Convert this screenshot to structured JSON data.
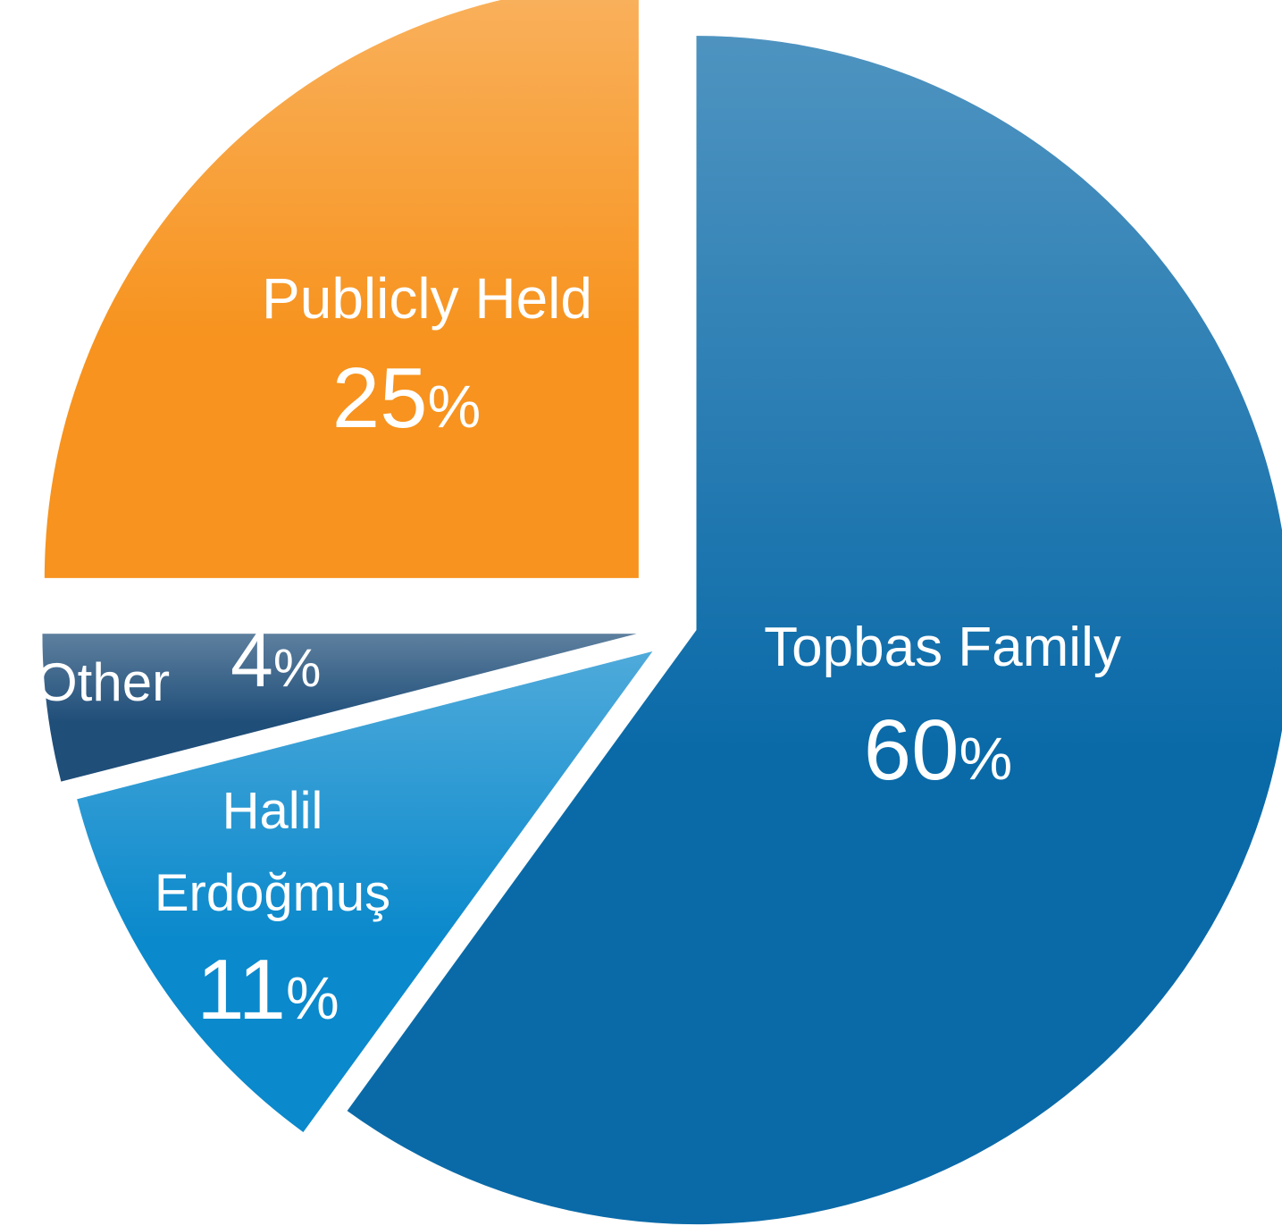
{
  "chart_data": {
    "type": "pie",
    "categories": [
      "Topbas Family",
      "Halil Erdoğmuş",
      "Other",
      "Publicly Held"
    ],
    "values": [
      60,
      11,
      4,
      25
    ],
    "value_labels": [
      "60%",
      "11%",
      "4%",
      "25%"
    ],
    "colors": [
      "#0a6aa8",
      "#0a89cc",
      "#1f4e79",
      "#f7931e"
    ]
  }
}
